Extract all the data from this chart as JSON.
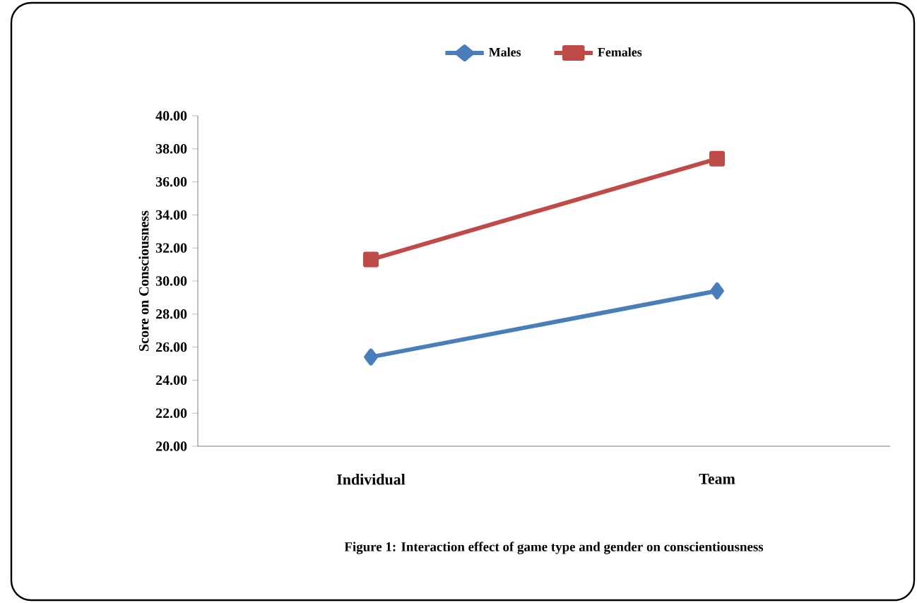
{
  "chart_data": {
    "type": "line",
    "ylabel": "Score on Consciousness",
    "categories": [
      "Individual",
      "Team"
    ],
    "series": [
      {
        "name": "Males",
        "color": "#4a7ebb",
        "values": [
          25.4,
          29.4
        ],
        "marker": "diamond"
      },
      {
        "name": "Females",
        "color": "#be4b48",
        "values": [
          31.3,
          37.4
        ],
        "marker": "square"
      }
    ],
    "ylim": [
      20,
      40
    ],
    "yticks": [
      {
        "value": 20,
        "label": "20.00"
      },
      {
        "value": 22,
        "label": "22.00"
      },
      {
        "value": 24,
        "label": "24.00"
      },
      {
        "value": 26,
        "label": "26.00"
      },
      {
        "value": 28,
        "label": "28.00"
      },
      {
        "value": 30,
        "label": "30.00"
      },
      {
        "value": 32,
        "label": "32.00"
      },
      {
        "value": 34,
        "label": "34.00"
      },
      {
        "value": 36,
        "label": "36.00"
      },
      {
        "value": 38,
        "label": "38.00"
      },
      {
        "value": 40,
        "label": "40.00"
      }
    ],
    "grid": false,
    "legend": "top",
    "line_style": "solid",
    "annotations": [
      "Figure 1: Interaction effect of game type and gender on conscientiousness"
    ]
  }
}
